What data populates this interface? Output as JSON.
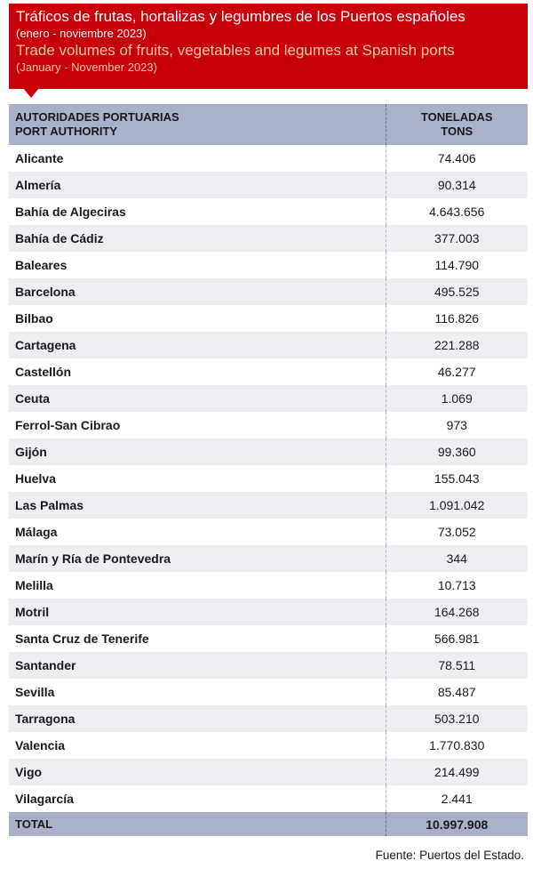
{
  "header": {
    "title_es": "Tráficos de frutas, hortalizas y legumbres de los Puertos españoles",
    "period_es": "(enero - noviembre 2023)",
    "title_en": "Trade volumes of fruits, vegetables and legumes at Spanish ports",
    "period_en": "(January - November 2023)"
  },
  "colors": {
    "header_bg": "#c8000a",
    "header_en_text": "#f8c8a8",
    "table_header_bg": "#a9b1c8",
    "row_alt_bg": "#eceef2"
  },
  "chart_data": {
    "type": "table",
    "columns": [
      {
        "label_es": "AUTORIDADES PORTUARIAS",
        "label_en": "PORT AUTHORITY"
      },
      {
        "label_es": "TONELADAS",
        "label_en": "TONS"
      }
    ],
    "rows": [
      {
        "name": "Alicante",
        "value": "74.406"
      },
      {
        "name": "Almería",
        "value": "90.314"
      },
      {
        "name": "Bahía de Algeciras",
        "value": "4.643.656"
      },
      {
        "name": "Bahía de Cádiz",
        "value": "377.003"
      },
      {
        "name": "Baleares",
        "value": "114.790"
      },
      {
        "name": "Barcelona",
        "value": "495.525"
      },
      {
        "name": "Bilbao",
        "value": "116.826"
      },
      {
        "name": "Cartagena",
        "value": "221.288"
      },
      {
        "name": "Castellón",
        "value": "46.277"
      },
      {
        "name": "Ceuta",
        "value": "1.069"
      },
      {
        "name": "Ferrol-San Cibrao",
        "value": "973"
      },
      {
        "name": "Gijón",
        "value": "99.360"
      },
      {
        "name": "Huelva",
        "value": "155.043"
      },
      {
        "name": "Las Palmas",
        "value": "1.091.042"
      },
      {
        "name": "Málaga",
        "value": "73.052"
      },
      {
        "name": "Marín y Ría de Pontevedra",
        "value": "344"
      },
      {
        "name": "Melilla",
        "value": "10.713"
      },
      {
        "name": "Motril",
        "value": "164.268"
      },
      {
        "name": "Santa Cruz de Tenerife",
        "value": "566.981"
      },
      {
        "name": "Santander",
        "value": "78.511"
      },
      {
        "name": "Sevilla",
        "value": "85.487"
      },
      {
        "name": "Tarragona",
        "value": "503.210"
      },
      {
        "name": "Valencia",
        "value": "1.770.830"
      },
      {
        "name": "Vigo",
        "value": "214.499"
      },
      {
        "name": "Vilagarcía",
        "value": "2.441"
      }
    ],
    "total": {
      "label": "TOTAL",
      "value": "10.997.908"
    }
  },
  "source": "Fuente: Puertos del Estado."
}
